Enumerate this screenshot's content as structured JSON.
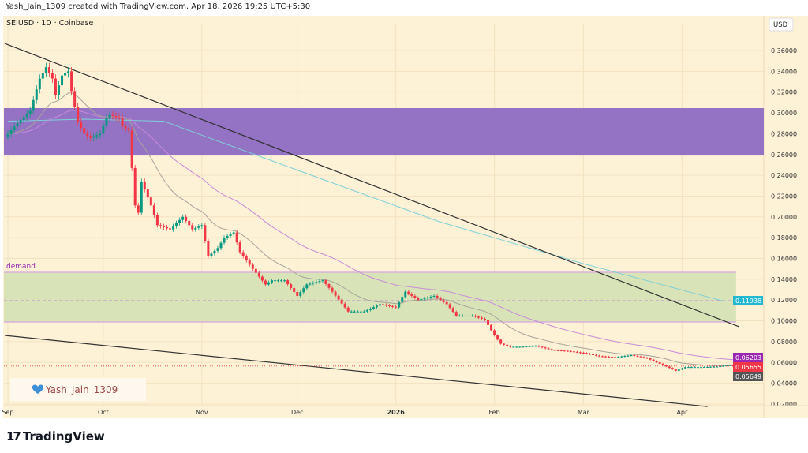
{
  "header": {
    "created_text": "Yash_Jain_1309 created with TradingView.com, Apr 18, 2026 19:25 UTC+5:30"
  },
  "symbol_info": "SEIUSD · 1D · Coinbase",
  "currency_button": "USD",
  "watermark": {
    "text": "Yash_Jain_1309",
    "icon": "blue-heart-icon"
  },
  "footer": {
    "logo_text": "TradingView",
    "icon": "tradingview-logo-icon"
  },
  "colors": {
    "background": "#fdf1d6",
    "up": "#089981",
    "down": "#f23645",
    "supply_zone": "#8e6cc4",
    "demand_zone": "#d8e3b8",
    "ma_fast": "#a8a39a",
    "ma_mid": "#c98bd8",
    "ma_slow": "#7fd0d8",
    "trendline": "#333333"
  },
  "chart_data": {
    "type": "candlestick",
    "title": "SEIUSD · 1D · Coinbase",
    "ylim": [
      0.01,
      0.38
    ],
    "y_ticks": [
      "0.36000",
      "0.34000",
      "0.32000",
      "0.30000",
      "0.28000",
      "0.26000",
      "0.24000",
      "0.22000",
      "0.20000",
      "0.18000",
      "0.16000",
      "0.14000",
      "0.12000",
      "0.10000",
      "0.08000",
      "0.06000",
      "0.04000",
      "0.02000"
    ],
    "x_ticks": [
      {
        "label": "Sep",
        "date": "2025-09-01"
      },
      {
        "label": "Oct",
        "date": "2025-10-01"
      },
      {
        "label": "Nov",
        "date": "2025-11-01"
      },
      {
        "label": "Dec",
        "date": "2025-12-01"
      },
      {
        "label": "2026",
        "date": "2026-01-01"
      },
      {
        "label": "Feb",
        "date": "2026-02-01"
      },
      {
        "label": "Mar",
        "date": "2026-03-01"
      },
      {
        "label": "Apr",
        "date": "2026-04-01"
      }
    ],
    "grid": true,
    "closes": [
      [
        "2025-09-01",
        0.2795
      ],
      [
        "2025-09-03",
        0.287
      ],
      [
        "2025-09-08",
        0.302
      ],
      [
        "2025-09-11",
        0.333
      ],
      [
        "2025-09-13",
        0.344
      ],
      [
        "2025-09-15",
        0.333
      ],
      [
        "2025-09-16",
        0.317
      ],
      [
        "2025-09-18",
        0.336
      ],
      [
        "2025-09-20",
        0.34
      ],
      [
        "2025-09-21",
        0.321
      ],
      [
        "2025-09-23",
        0.291
      ],
      [
        "2025-09-25",
        0.28
      ],
      [
        "2025-09-27",
        0.276
      ],
      [
        "2025-09-30",
        0.28
      ],
      [
        "2025-10-02",
        0.295
      ],
      [
        "2025-10-03",
        0.298
      ],
      [
        "2025-10-06",
        0.295
      ],
      [
        "2025-10-07",
        0.287
      ],
      [
        "2025-10-09",
        0.283
      ],
      [
        "2025-10-11",
        0.211
      ],
      [
        "2025-10-12",
        0.204
      ],
      [
        "2025-10-13",
        0.234
      ],
      [
        "2025-10-16",
        0.211
      ],
      [
        "2025-10-18",
        0.192
      ],
      [
        "2025-10-22",
        0.188
      ],
      [
        "2025-10-26",
        0.2
      ],
      [
        "2025-10-29",
        0.188
      ],
      [
        "2025-11-01",
        0.192
      ],
      [
        "2025-11-03",
        0.162
      ],
      [
        "2025-11-06",
        0.17
      ],
      [
        "2025-11-08",
        0.18
      ],
      [
        "2025-11-11",
        0.185
      ],
      [
        "2025-11-13",
        0.166
      ],
      [
        "2025-11-17",
        0.15
      ],
      [
        "2025-11-21",
        0.135
      ],
      [
        "2025-11-23",
        0.139
      ],
      [
        "2025-11-27",
        0.139
      ],
      [
        "2025-12-01",
        0.124
      ],
      [
        "2025-12-04",
        0.135
      ],
      [
        "2025-12-09",
        0.139
      ],
      [
        "2025-12-12",
        0.128
      ],
      [
        "2025-12-17",
        0.109
      ],
      [
        "2025-12-22",
        0.109
      ],
      [
        "2025-12-27",
        0.116
      ],
      [
        "2026-01-01",
        0.113
      ],
      [
        "2026-01-04",
        0.128
      ],
      [
        "2026-01-08",
        0.12
      ],
      [
        "2026-01-13",
        0.124
      ],
      [
        "2026-01-17",
        0.116
      ],
      [
        "2026-01-20",
        0.105
      ],
      [
        "2026-01-25",
        0.105
      ],
      [
        "2026-01-29",
        0.101
      ],
      [
        "2026-02-01",
        0.086
      ],
      [
        "2026-02-03",
        0.078
      ],
      [
        "2026-02-06",
        0.075
      ],
      [
        "2026-02-09",
        0.075
      ],
      [
        "2026-02-14",
        0.076
      ],
      [
        "2026-02-19",
        0.072
      ],
      [
        "2026-02-24",
        0.071
      ],
      [
        "2026-03-01",
        0.069
      ],
      [
        "2026-03-06",
        0.066
      ],
      [
        "2026-03-11",
        0.065
      ],
      [
        "2026-03-16",
        0.067
      ],
      [
        "2026-03-21",
        0.064
      ],
      [
        "2026-03-26",
        0.0575
      ],
      [
        "2026-03-30",
        0.052
      ],
      [
        "2026-04-02",
        0.0555
      ],
      [
        "2026-04-07",
        0.0555
      ],
      [
        "2026-04-12",
        0.056
      ],
      [
        "2026-04-16",
        0.0575
      ],
      [
        "2026-04-17",
        0.05655
      ]
    ],
    "slow_ma": [
      [
        "2025-09-01",
        0.292
      ],
      [
        "2025-09-25",
        0.294
      ],
      [
        "2025-10-20",
        0.292
      ],
      [
        "2025-12-01",
        0.245
      ],
      [
        "2026-01-15",
        0.195
      ],
      [
        "2026-03-01",
        0.155
      ],
      [
        "2026-04-14",
        0.119
      ]
    ],
    "zones": [
      {
        "label": "",
        "top": 0.3046,
        "bottom": 0.259,
        "start": "2025-08-31",
        "color": "#8e6cc4"
      },
      {
        "label": "demand",
        "top": 0.1467,
        "bottom": 0.0989,
        "start": "2025-08-31",
        "end": "2026-04-18",
        "color": "#d8e3b8"
      }
    ],
    "levels": [
      {
        "value": 0.11938,
        "label": "0.11938",
        "style": "dashed",
        "color": "#22b8cf"
      }
    ],
    "trendlines": [
      {
        "from": [
          "2025-08-31",
          0.3668
        ],
        "to": [
          "2026-04-19",
          0.0943
        ]
      },
      {
        "from": [
          "2025-08-31",
          0.086
        ],
        "to": [
          "2026-04-09",
          0.0176
        ]
      }
    ],
    "price_labels": [
      {
        "value": "0.06203",
        "color": "#9c27b0"
      },
      {
        "value": "0.05655",
        "color": "#f23645"
      },
      {
        "value": "0.05649",
        "color": "#555555"
      }
    ]
  }
}
